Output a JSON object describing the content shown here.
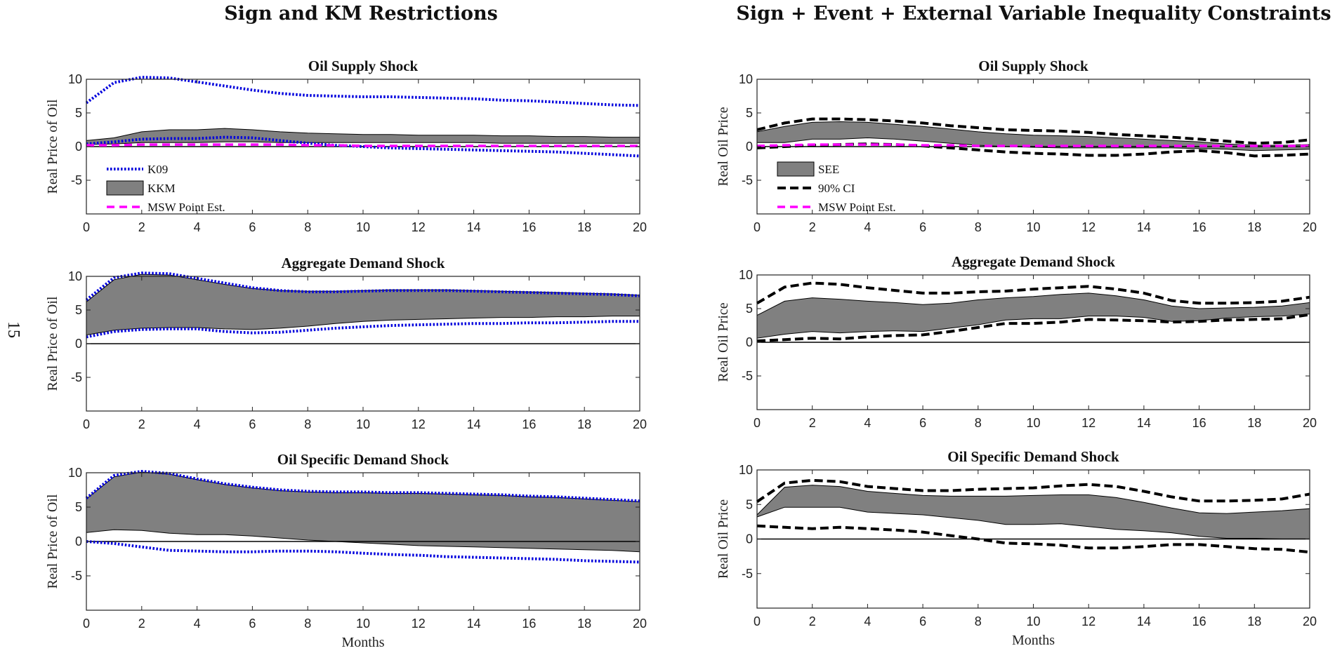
{
  "page_number": "15",
  "columns": [
    {
      "title": "Sign and KM Restrictions"
    },
    {
      "title": "Sign + Event + External Variable Inequality Constraints"
    }
  ],
  "colors": {
    "band": "#808080",
    "k09": "#0000dd",
    "ci": "#000000",
    "msw": "#ff00ff",
    "zero_line": "#000000"
  },
  "chart_data": [
    {
      "type": "line",
      "title": "Oil Supply Shock",
      "ylabel": "Real Price of Oil",
      "xlabel": "",
      "xlim": [
        0,
        20
      ],
      "ylim": [
        -10,
        10
      ],
      "xticks": [
        0,
        2,
        4,
        6,
        8,
        10,
        12,
        14,
        16,
        18,
        20
      ],
      "yticks": [
        10,
        5,
        0,
        -5
      ],
      "grid": false,
      "legend": {
        "placement": "bottom-left",
        "entries": [
          "K09",
          "KKM",
          "MSW Point Est."
        ]
      },
      "x": [
        0,
        1,
        2,
        3,
        4,
        5,
        6,
        7,
        8,
        9,
        10,
        11,
        12,
        13,
        14,
        15,
        16,
        17,
        18,
        19,
        20
      ],
      "band": {
        "name": "KKM",
        "upper": [
          0.9,
          1.3,
          2.2,
          2.5,
          2.5,
          2.7,
          2.5,
          2.2,
          2.0,
          1.9,
          1.8,
          1.8,
          1.7,
          1.7,
          1.7,
          1.6,
          1.6,
          1.5,
          1.5,
          1.4,
          1.4
        ],
        "lower": [
          0.3,
          0.4,
          0.6,
          0.6,
          0.6,
          0.7,
          0.7,
          0.6,
          0.6,
          0.6,
          0.6,
          0.6,
          0.6,
          0.6,
          0.6,
          0.5,
          0.5,
          0.5,
          0.5,
          0.5,
          0.5
        ]
      },
      "series": [
        {
          "name": "K09",
          "style": "dotted",
          "values": [
            6.5,
            9.5,
            10.3,
            10.2,
            9.6,
            9.0,
            8.4,
            7.9,
            7.6,
            7.5,
            7.4,
            7.4,
            7.3,
            7.2,
            7.1,
            6.9,
            6.8,
            6.6,
            6.4,
            6.2,
            6.1
          ]
        },
        {
          "name": "",
          "style": "dotted",
          "values": [
            0.4,
            0.7,
            1.1,
            1.2,
            1.2,
            1.4,
            1.3,
            0.9,
            0.5,
            0.2,
            0.0,
            -0.2,
            -0.3,
            -0.4,
            -0.5,
            -0.6,
            -0.7,
            -0.8,
            -1.0,
            -1.2,
            -1.4
          ]
        },
        {
          "name": "MSW Point Est.",
          "style": "dashed",
          "values": [
            0.2,
            0.2,
            0.3,
            0.3,
            0.3,
            0.3,
            0.3,
            0.3,
            0.2,
            0.2,
            0.1,
            0.1,
            0.1,
            0.1,
            0.1,
            0.1,
            0.1,
            0.1,
            0.1,
            0.1,
            0.1
          ]
        }
      ]
    },
    {
      "type": "line",
      "title": "Aggregate Demand Shock",
      "ylabel": "Real Price of Oil",
      "xlabel": "",
      "xlim": [
        0,
        20
      ],
      "ylim": [
        -10,
        10
      ],
      "xticks": [
        0,
        2,
        4,
        6,
        8,
        10,
        12,
        14,
        16,
        18,
        20
      ],
      "yticks": [
        10,
        5,
        0,
        -5
      ],
      "grid": false,
      "x": [
        0,
        1,
        2,
        3,
        4,
        5,
        6,
        7,
        8,
        9,
        10,
        11,
        12,
        13,
        14,
        15,
        16,
        17,
        18,
        19,
        20
      ],
      "band": {
        "name": "KKM",
        "upper": [
          6.2,
          9.5,
          10.3,
          10.2,
          9.5,
          8.8,
          8.2,
          7.9,
          7.8,
          7.8,
          7.9,
          8.0,
          8.0,
          8.0,
          7.9,
          7.8,
          7.7,
          7.6,
          7.5,
          7.4,
          7.2
        ],
        "lower": [
          1.3,
          2.0,
          2.3,
          2.4,
          2.4,
          2.2,
          2.1,
          2.3,
          2.6,
          3.0,
          3.3,
          3.5,
          3.6,
          3.7,
          3.8,
          3.9,
          3.9,
          4.0,
          4.0,
          4.1,
          4.1
        ]
      },
      "series": [
        {
          "name": "K09",
          "style": "dotted",
          "values": [
            6.5,
            9.8,
            10.5,
            10.4,
            9.7,
            9.0,
            8.3,
            7.9,
            7.7,
            7.7,
            7.8,
            7.9,
            7.9,
            7.9,
            7.8,
            7.7,
            7.6,
            7.5,
            7.4,
            7.3,
            7.1
          ]
        },
        {
          "name": "",
          "style": "dotted",
          "values": [
            1.0,
            1.8,
            2.1,
            2.2,
            2.2,
            1.8,
            1.6,
            1.7,
            2.0,
            2.3,
            2.5,
            2.7,
            2.8,
            2.9,
            3.0,
            3.0,
            3.1,
            3.1,
            3.2,
            3.3,
            3.3
          ]
        }
      ]
    },
    {
      "type": "line",
      "title": "Oil Specific Demand Shock",
      "ylabel": "Real Price of Oil",
      "xlabel": "Months",
      "xlim": [
        0,
        20
      ],
      "ylim": [
        -10,
        10
      ],
      "xticks": [
        0,
        2,
        4,
        6,
        8,
        10,
        12,
        14,
        16,
        18,
        20
      ],
      "yticks": [
        10,
        5,
        0,
        -5
      ],
      "grid": false,
      "x": [
        0,
        1,
        2,
        3,
        4,
        5,
        6,
        7,
        8,
        9,
        10,
        11,
        12,
        13,
        14,
        15,
        16,
        17,
        18,
        19,
        20
      ],
      "band": {
        "name": "KKM",
        "upper": [
          6.2,
          9.4,
          10.1,
          9.8,
          9.0,
          8.3,
          7.8,
          7.4,
          7.2,
          7.1,
          7.1,
          7.0,
          7.0,
          6.9,
          6.8,
          6.7,
          6.5,
          6.4,
          6.2,
          6.0,
          5.8
        ],
        "lower": [
          1.3,
          1.7,
          1.6,
          1.2,
          1.0,
          1.0,
          0.8,
          0.5,
          0.2,
          0.0,
          -0.2,
          -0.4,
          -0.6,
          -0.7,
          -0.8,
          -0.9,
          -1.0,
          -1.1,
          -1.2,
          -1.3,
          -1.5
        ]
      },
      "series": [
        {
          "name": "K09",
          "style": "dotted",
          "values": [
            6.3,
            9.6,
            10.2,
            9.9,
            9.1,
            8.4,
            7.9,
            7.5,
            7.3,
            7.2,
            7.2,
            7.1,
            7.1,
            7.0,
            6.9,
            6.8,
            6.6,
            6.5,
            6.3,
            6.1,
            5.9
          ]
        },
        {
          "name": "",
          "style": "dotted",
          "values": [
            0.0,
            -0.3,
            -0.8,
            -1.3,
            -1.4,
            -1.5,
            -1.5,
            -1.4,
            -1.4,
            -1.5,
            -1.7,
            -1.9,
            -2.0,
            -2.2,
            -2.3,
            -2.4,
            -2.5,
            -2.6,
            -2.8,
            -2.9,
            -3.0
          ]
        }
      ]
    },
    {
      "type": "line",
      "title": "Oil Supply Shock",
      "ylabel": "Real Oil Price",
      "xlabel": "",
      "xlim": [
        0,
        20
      ],
      "ylim": [
        -10,
        10
      ],
      "xticks": [
        0,
        2,
        4,
        6,
        8,
        10,
        12,
        14,
        16,
        18,
        20
      ],
      "yticks": [
        10,
        5,
        0,
        -5
      ],
      "grid": false,
      "legend": {
        "placement": "bottom-left",
        "entries": [
          "SEE",
          "90% CI",
          "MSW Point Est."
        ]
      },
      "x": [
        0,
        1,
        2,
        3,
        4,
        5,
        6,
        7,
        8,
        9,
        10,
        11,
        12,
        13,
        14,
        15,
        16,
        17,
        18,
        19,
        20
      ],
      "band": {
        "name": "SEE",
        "upper": [
          2.2,
          3.0,
          3.6,
          3.7,
          3.6,
          3.3,
          3.0,
          2.6,
          2.2,
          1.9,
          1.7,
          1.6,
          1.5,
          1.3,
          1.1,
          0.9,
          0.7,
          0.4,
          0.2,
          0.2,
          0.3
        ],
        "lower": [
          0.6,
          0.6,
          1.1,
          1.1,
          1.3,
          1.1,
          0.8,
          0.5,
          0.2,
          0.0,
          -0.1,
          -0.2,
          -0.2,
          -0.2,
          -0.2,
          -0.2,
          -0.3,
          -0.4,
          -0.6,
          -0.5,
          -0.4
        ]
      },
      "series": [
        {
          "name": "90% CI",
          "style": "dashed",
          "values": [
            2.5,
            3.5,
            4.1,
            4.1,
            4.0,
            3.8,
            3.5,
            3.1,
            2.8,
            2.5,
            2.4,
            2.3,
            2.1,
            1.8,
            1.6,
            1.4,
            1.1,
            0.8,
            0.5,
            0.6,
            1.0
          ]
        },
        {
          "name": "",
          "style": "dashed",
          "values": [
            -0.2,
            0.0,
            0.2,
            0.3,
            0.4,
            0.3,
            0.1,
            -0.2,
            -0.5,
            -0.8,
            -1.0,
            -1.1,
            -1.3,
            -1.3,
            -1.1,
            -0.8,
            -0.6,
            -0.9,
            -1.4,
            -1.3,
            -1.1
          ]
        },
        {
          "name": "MSW Point Est.",
          "style": "dashed",
          "values": [
            0.1,
            0.2,
            0.3,
            0.3,
            0.3,
            0.3,
            0.2,
            0.2,
            0.1,
            0.1,
            0.1,
            0.1,
            0.1,
            0.1,
            0.1,
            0.1,
            0.1,
            0.1,
            0.1,
            0.1,
            0.1
          ]
        }
      ]
    },
    {
      "type": "line",
      "title": "Aggregate Demand Shock",
      "ylabel": "Real Oil Price",
      "xlabel": "",
      "xlim": [
        0,
        20
      ],
      "ylim": [
        -10,
        10
      ],
      "xticks": [
        0,
        2,
        4,
        6,
        8,
        10,
        12,
        14,
        16,
        18,
        20
      ],
      "yticks": [
        10,
        5,
        0,
        -5
      ],
      "grid": false,
      "x": [
        0,
        1,
        2,
        3,
        4,
        5,
        6,
        7,
        8,
        9,
        10,
        11,
        12,
        13,
        14,
        15,
        16,
        17,
        18,
        19,
        20
      ],
      "band": {
        "name": "SEE",
        "upper": [
          4.0,
          6.1,
          6.6,
          6.4,
          6.1,
          5.9,
          5.6,
          5.8,
          6.3,
          6.6,
          6.8,
          7.1,
          7.3,
          6.9,
          6.3,
          5.4,
          5.0,
          5.1,
          5.2,
          5.4,
          5.9
        ],
        "lower": [
          0.6,
          1.2,
          1.6,
          1.4,
          1.6,
          1.7,
          1.6,
          2.1,
          2.6,
          3.3,
          3.5,
          3.5,
          3.9,
          3.9,
          3.7,
          3.1,
          3.2,
          3.6,
          3.8,
          3.9,
          4.2
        ]
      },
      "series": [
        {
          "name": "90% CI",
          "style": "dashed",
          "values": [
            5.8,
            8.2,
            8.8,
            8.6,
            8.1,
            7.7,
            7.3,
            7.3,
            7.5,
            7.6,
            7.9,
            8.1,
            8.3,
            7.9,
            7.3,
            6.2,
            5.8,
            5.8,
            5.9,
            6.1,
            6.7
          ]
        },
        {
          "name": "",
          "style": "dashed",
          "values": [
            0.2,
            0.4,
            0.6,
            0.5,
            0.8,
            1.0,
            1.1,
            1.6,
            2.2,
            2.8,
            2.8,
            3.0,
            3.4,
            3.3,
            3.2,
            3.0,
            3.1,
            3.3,
            3.4,
            3.5,
            4.1
          ]
        }
      ]
    },
    {
      "type": "line",
      "title": "Oil Specific Demand Shock",
      "ylabel": "Real Oil Price",
      "xlabel": "Months",
      "xlim": [
        0,
        20
      ],
      "ylim": [
        -10,
        10
      ],
      "xticks": [
        0,
        2,
        4,
        6,
        8,
        10,
        12,
        14,
        16,
        18,
        20
      ],
      "yticks": [
        10,
        5,
        0,
        -5
      ],
      "grid": false,
      "x": [
        0,
        1,
        2,
        3,
        4,
        5,
        6,
        7,
        8,
        9,
        10,
        11,
        12,
        13,
        14,
        15,
        16,
        17,
        18,
        19,
        20
      ],
      "band": {
        "name": "SEE",
        "upper": [
          3.5,
          7.5,
          7.8,
          7.6,
          6.9,
          6.6,
          6.3,
          6.2,
          6.2,
          6.2,
          6.3,
          6.4,
          6.4,
          6.0,
          5.3,
          4.5,
          3.8,
          3.7,
          3.9,
          4.1,
          4.4
        ],
        "lower": [
          3.2,
          4.6,
          4.6,
          4.6,
          3.9,
          3.7,
          3.5,
          3.1,
          2.7,
          2.1,
          2.1,
          2.2,
          1.8,
          1.4,
          1.2,
          0.9,
          0.4,
          0.1,
          0.1,
          0.0,
          0.0
        ]
      },
      "series": [
        {
          "name": "90% CI",
          "style": "dashed",
          "values": [
            5.4,
            8.1,
            8.5,
            8.3,
            7.6,
            7.3,
            7.0,
            7.0,
            7.2,
            7.3,
            7.4,
            7.7,
            7.9,
            7.6,
            6.9,
            6.1,
            5.5,
            5.5,
            5.6,
            5.8,
            6.5
          ]
        },
        {
          "name": "",
          "style": "dashed",
          "values": [
            1.9,
            1.7,
            1.5,
            1.7,
            1.5,
            1.3,
            1.0,
            0.5,
            0.0,
            -0.6,
            -0.7,
            -0.9,
            -1.3,
            -1.3,
            -1.1,
            -0.8,
            -0.8,
            -1.1,
            -1.4,
            -1.5,
            -1.9
          ]
        }
      ]
    }
  ]
}
